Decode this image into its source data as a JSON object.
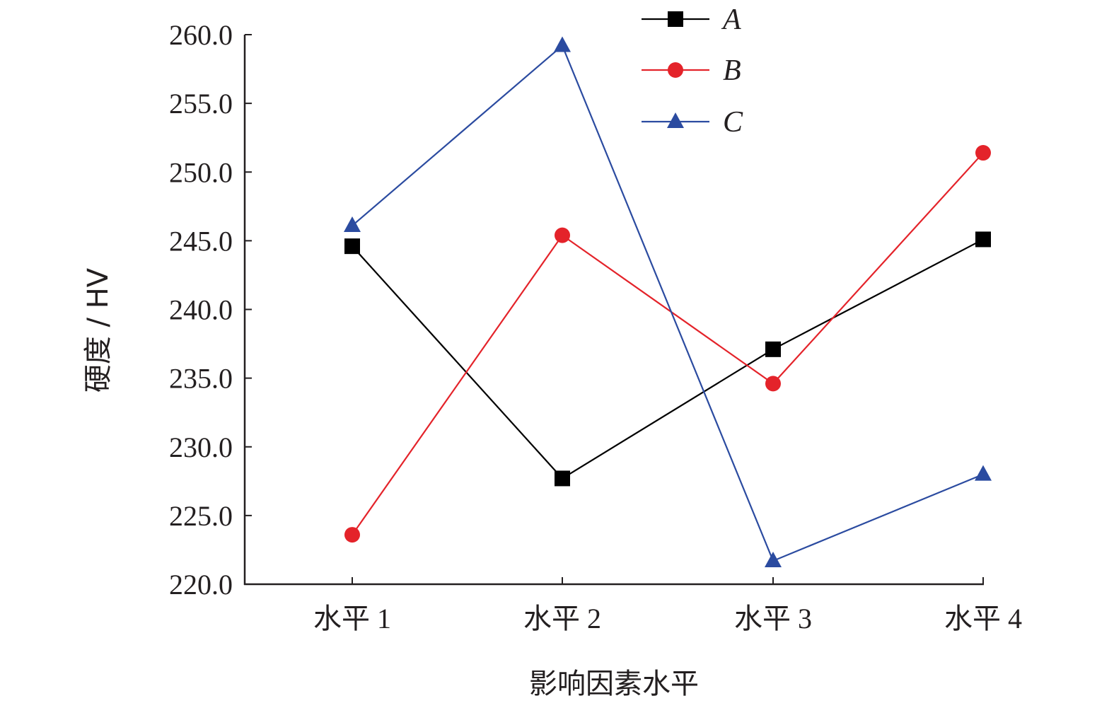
{
  "chart_data": {
    "type": "line",
    "xlabel": "影响因素水平",
    "ylabel": "硬度 / HV",
    "categories": [
      "水平 1",
      "水平 2",
      "水平 3",
      "水平 4"
    ],
    "ylim": [
      220,
      260
    ],
    "yticks": [
      "220.0",
      "225.0",
      "230.0",
      "235.0",
      "240.0",
      "245.0",
      "250.0",
      "255.0",
      "260.0"
    ],
    "grid": false,
    "legend_position": "top-right",
    "series": [
      {
        "name": "A",
        "marker": "square",
        "color": "#000000",
        "values": [
          244.6,
          227.7,
          237.1,
          245.1
        ]
      },
      {
        "name": "B",
        "marker": "circle",
        "color": "#e4232a",
        "values": [
          223.6,
          245.4,
          234.6,
          251.4
        ]
      },
      {
        "name": "C",
        "marker": "triangle",
        "color": "#2b4ba0",
        "values": [
          246.1,
          259.2,
          221.7,
          228.0
        ]
      }
    ]
  }
}
